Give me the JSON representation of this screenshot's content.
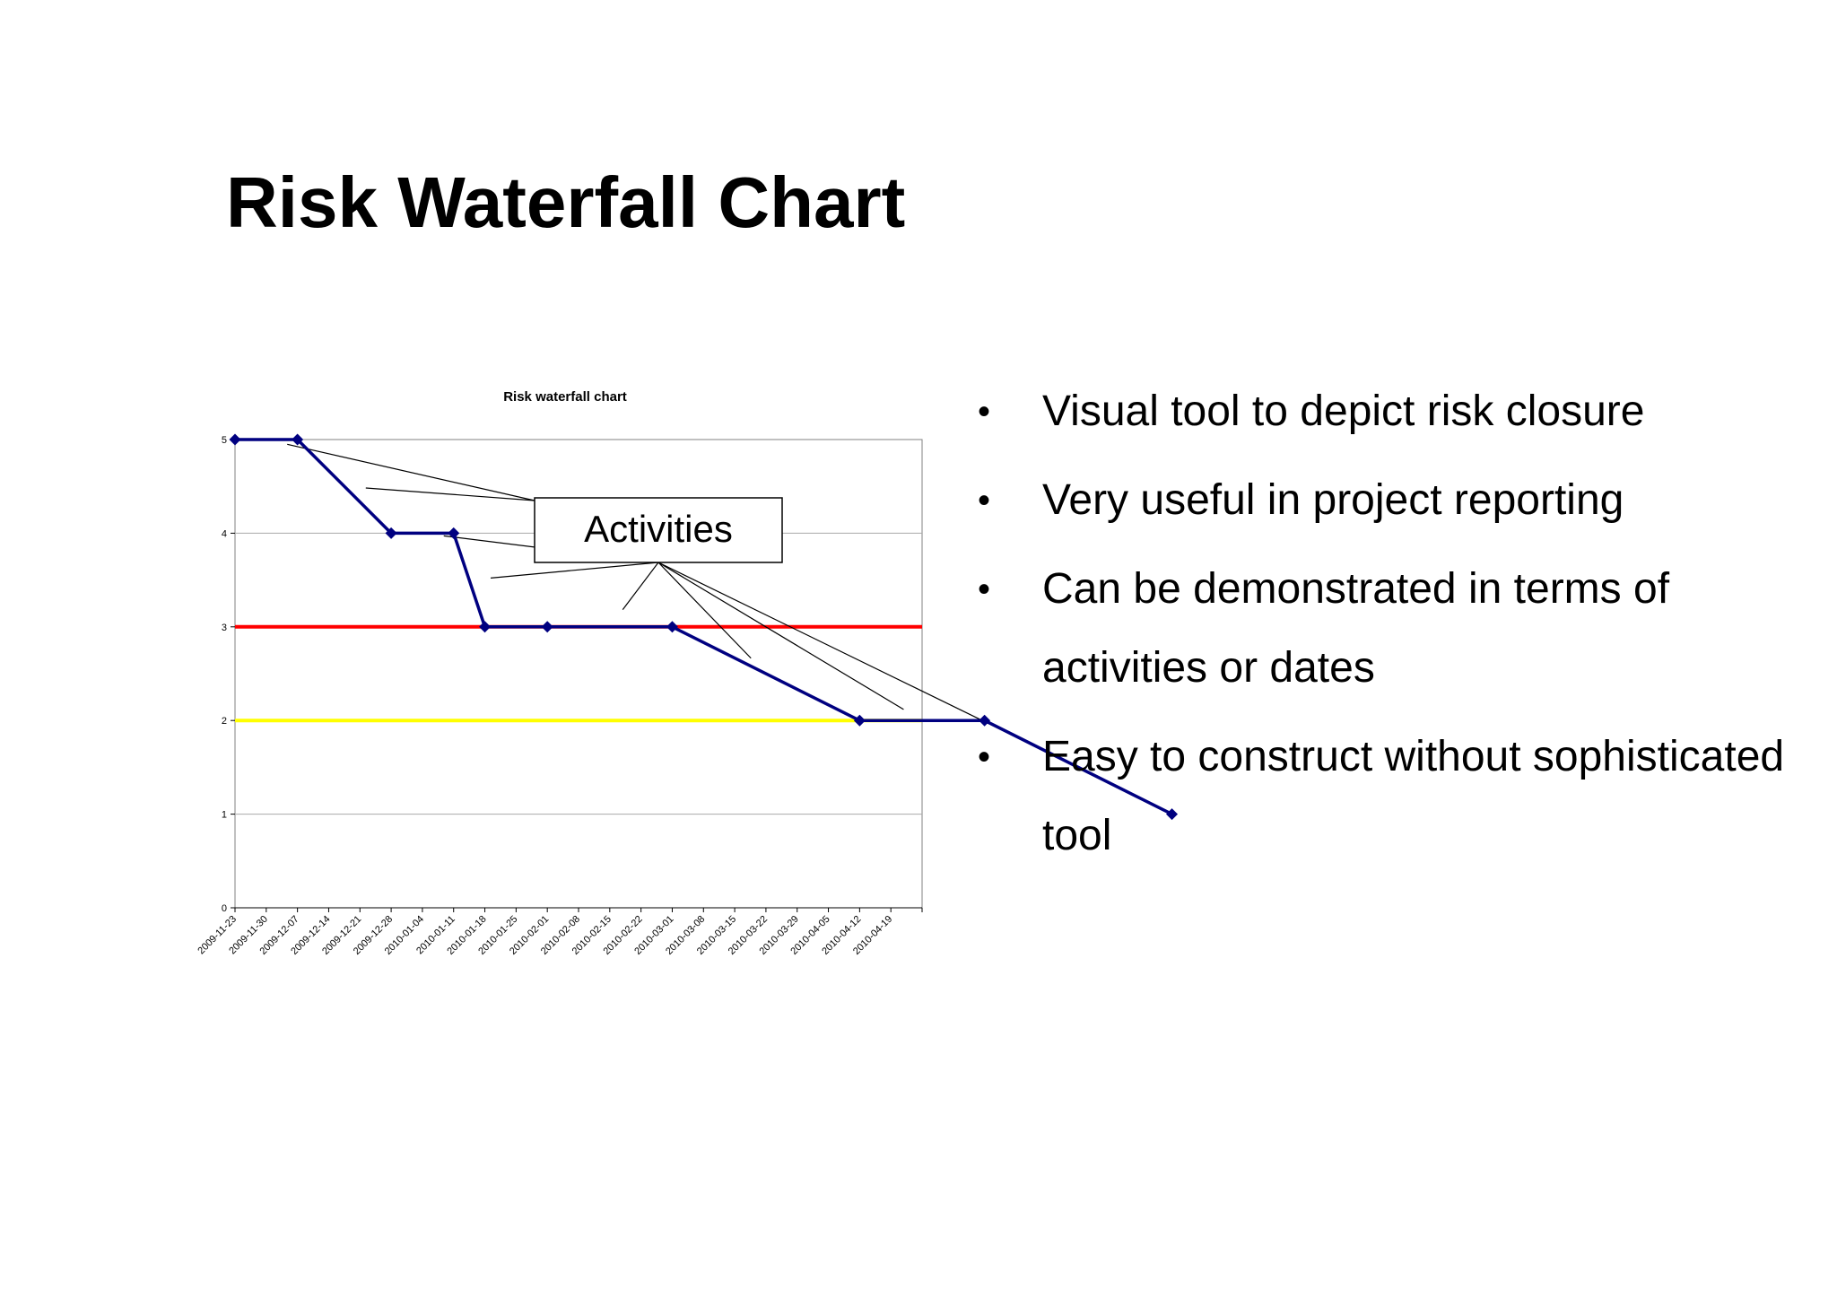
{
  "slide": {
    "title": "Risk Waterfall Chart",
    "bullets": [
      "Visual tool to depict risk closure",
      "Very useful in project reporting",
      "Can be demonstrated in terms of activities or dates",
      "Easy to construct without sophisticated tool"
    ]
  },
  "colors": {
    "series": "#000080",
    "red_threshold": "#ff0000",
    "yellow_threshold": "#ffff00",
    "grid": "#aaaaaa",
    "plot_border": "#808080"
  },
  "chart_data": {
    "type": "line",
    "title": "Risk waterfall chart",
    "categories": [
      "2009-11-23",
      "2009-11-30",
      "2009-12-07",
      "2009-12-14",
      "2009-12-21",
      "2009-12-28",
      "2010-01-04",
      "2010-01-11",
      "2010-01-18",
      "2010-01-25",
      "2010-02-01",
      "2010-02-08",
      "2010-02-15",
      "2010-02-22",
      "2010-03-01",
      "2010-03-08",
      "2010-03-15",
      "2010-03-22",
      "2010-03-29",
      "2010-04-05",
      "2010-04-12",
      "2010-04-19"
    ],
    "series": [
      {
        "points": [
          [
            "2009-11-23",
            5
          ],
          [
            "2009-12-07",
            5
          ],
          [
            "2009-12-28",
            4
          ],
          [
            "2010-01-11",
            4
          ],
          [
            "2010-01-18",
            3
          ],
          [
            "2010-02-01",
            3
          ],
          [
            "2010-03-01",
            3
          ],
          [
            "2010-04-12",
            2
          ],
          [
            "2010-05-10",
            2
          ],
          [
            "2010-06-21",
            1
          ]
        ]
      }
    ],
    "thresholds": [
      {
        "value": 3,
        "color": "red"
      },
      {
        "value": 2,
        "color": "yellow"
      }
    ],
    "ylim": [
      0,
      5
    ],
    "yticks": [
      0,
      1,
      2,
      3,
      4,
      5
    ],
    "grid": true,
    "annotation": {
      "text": "Activities",
      "targets": [
        1,
        2,
        3,
        4,
        6,
        7,
        8,
        9
      ]
    }
  }
}
